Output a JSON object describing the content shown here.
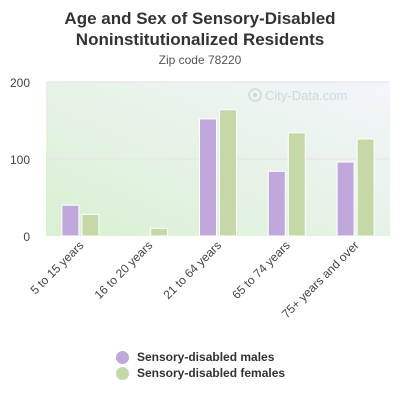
{
  "chart_data": {
    "type": "bar",
    "title": "Age and Sex of Sensory-Disabled Noninstitutionalized Residents",
    "subtitle": "Zip code 78220",
    "categories": [
      "5 to 15 years",
      "16 to 20 years",
      "21 to 64 years",
      "65 to 74 years",
      "75+ years and over"
    ],
    "series": [
      {
        "name": "Sensory-disabled males",
        "values": [
          40,
          0,
          152,
          84,
          96
        ],
        "color": "#c0a8dc"
      },
      {
        "name": "Sensory-disabled females",
        "values": [
          28,
          10,
          164,
          134,
          126
        ],
        "color": "#c5d9a8"
      }
    ],
    "ylim": [
      0,
      200
    ],
    "yticks": [
      0,
      100,
      200
    ],
    "grid": true,
    "legend": "bottom",
    "watermark": "City-Data.com"
  }
}
